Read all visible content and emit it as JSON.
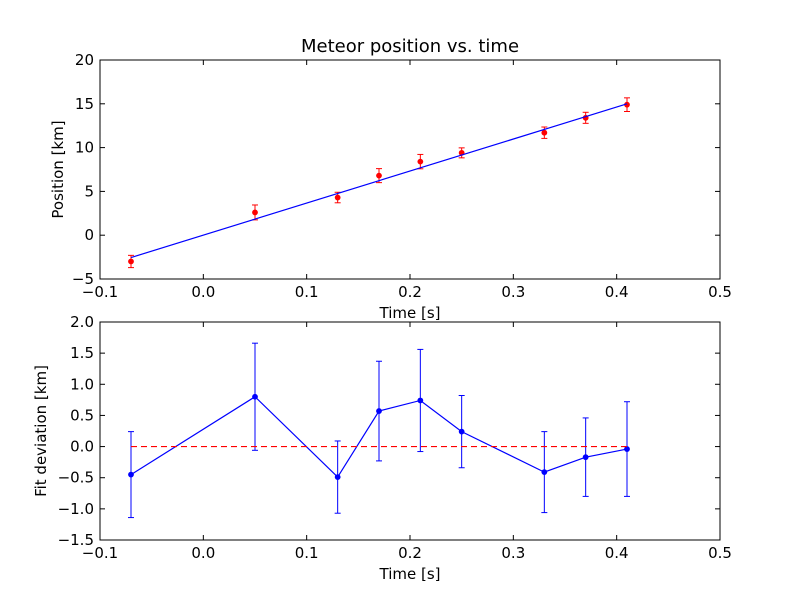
{
  "chart_data": [
    {
      "type": "scatter",
      "title": "Meteor position vs. time",
      "xlabel": "Time [s]",
      "ylabel": "Position [km]",
      "xlim": [
        -0.1,
        0.5
      ],
      "ylim": [
        -5,
        20
      ],
      "xticks": [
        "−0.1",
        "0.0",
        "0.1",
        "0.2",
        "0.3",
        "0.4",
        "0.5"
      ],
      "yticks": [
        "−5",
        "0",
        "5",
        "10",
        "15",
        "20"
      ],
      "series": [
        {
          "kind": "points-with-errorbars",
          "color": "#ff0000",
          "x": [
            -0.07,
            0.05,
            0.13,
            0.17,
            0.21,
            0.25,
            0.33,
            0.37,
            0.41
          ],
          "y": [
            -3.0,
            2.6,
            4.3,
            6.8,
            8.4,
            9.4,
            11.7,
            13.4,
            14.9
          ],
          "err": [
            0.7,
            0.85,
            0.6,
            0.8,
            0.82,
            0.57,
            0.65,
            0.63,
            0.78
          ]
        },
        {
          "kind": "fit-line",
          "color": "#0000ff",
          "x": [
            -0.07,
            0.41
          ],
          "y": [
            -2.55,
            15.0
          ]
        }
      ]
    },
    {
      "type": "line",
      "xlabel": "Time [s]",
      "ylabel": "Fit deviation [km]",
      "xlim": [
        -0.1,
        0.5
      ],
      "ylim": [
        -1.5,
        2.0
      ],
      "xticks": [
        "−0.1",
        "0.0",
        "0.1",
        "0.2",
        "0.3",
        "0.4",
        "0.5"
      ],
      "yticks": [
        "−1.5",
        "−1.0",
        "−0.5",
        "0.0",
        "0.5",
        "1.0",
        "1.5",
        "2.0"
      ],
      "series": [
        {
          "kind": "line-with-errorbars",
          "color": "#0000ff",
          "x": [
            -0.07,
            0.05,
            0.13,
            0.17,
            0.21,
            0.25,
            0.33,
            0.37,
            0.41
          ],
          "y": [
            -0.45,
            0.8,
            -0.49,
            0.57,
            0.74,
            0.24,
            -0.41,
            -0.17,
            -0.04
          ],
          "err": [
            0.69,
            0.86,
            0.58,
            0.8,
            0.82,
            0.58,
            0.65,
            0.63,
            0.76
          ]
        },
        {
          "kind": "dashed-zero-line",
          "color": "#ff0000",
          "x": [
            -0.07,
            0.41
          ],
          "y": [
            0,
            0
          ]
        }
      ]
    }
  ]
}
